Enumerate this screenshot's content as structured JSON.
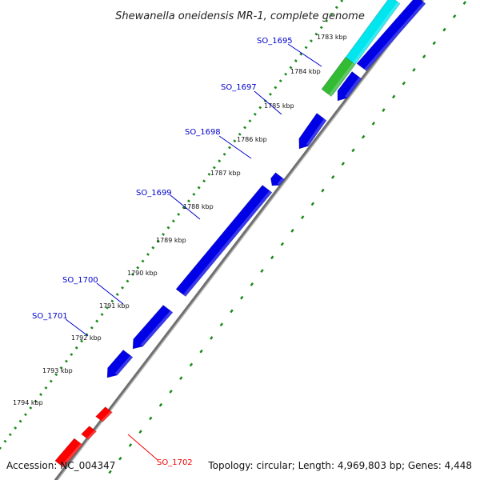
{
  "title": "Shewanella oneidensis MR-1, complete genome",
  "footer": {
    "accession": "Accession: NC_004347",
    "topology": "Topology: circular; Length: 4,969,803 bp; Genes: 4,448"
  },
  "ticks": [
    "1783 kbp",
    "1784 kbp",
    "1785 kbp",
    "1786 kbp",
    "1787 kbp",
    "1788 kbp",
    "1789 kbp",
    "1790 kbp",
    "1791 kbp",
    "1792 kbp",
    "1793 kbp",
    "1794 kbp"
  ],
  "gene_labels": [
    "SO_1695",
    "SO_1697",
    "SO_1698",
    "SO_1699",
    "SO_1700",
    "SO_1701",
    "SO_1702"
  ],
  "colors": {
    "forward_gene": "#0000e6",
    "reverse_gene": "#ff0000",
    "highlight_green": "#33bb33",
    "highlight_cyan": "#00e5ee",
    "backbone": "#8a8a8a",
    "tick_marks": "#1a8a1a",
    "label_blue": "#0000cc",
    "label_red": "#ee0000"
  }
}
